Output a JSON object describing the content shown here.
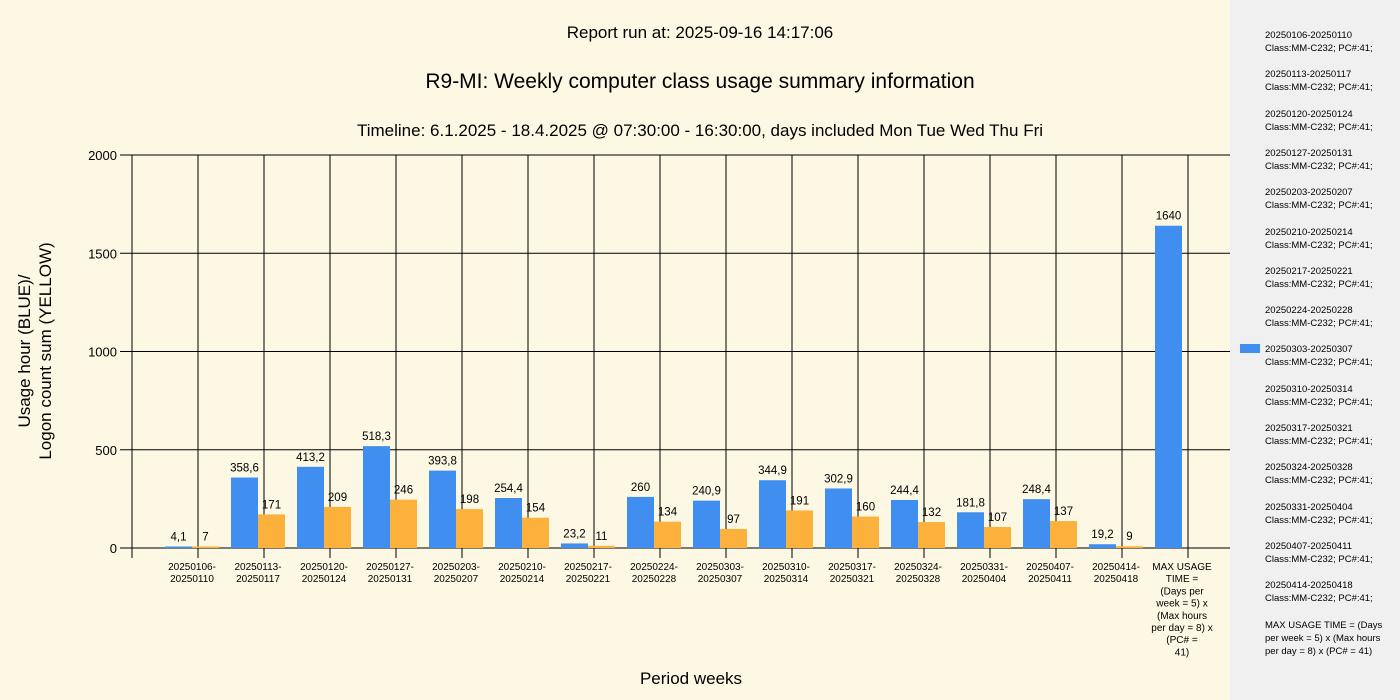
{
  "report_run": "Report run at: 2025-09-16 14:17:06",
  "title": "R9-MI: Weekly computer class usage summary information",
  "subtitle": "Timeline:  6.1.2025  - 18.4.2025  @  07:30:00 -  16:30:00, days included Mon Tue Wed Thu Fri",
  "colors": {
    "usage": "#3f8ef0",
    "logons": "#fbb13c",
    "background": "#fdf8e4",
    "legend_bg": "#f0f0f0"
  },
  "chart_data": {
    "type": "bar",
    "title": "R9-MI: Weekly computer class usage summary information",
    "xlabel": "Period weeks",
    "ylabel_lines": [
      "Usage hour (BLUE)/",
      "Logon count sum (YELLOW)"
    ],
    "ylim": [
      0,
      2000
    ],
    "yticks": [
      "0",
      "500",
      "1000",
      "1500",
      "2000"
    ],
    "grid": true,
    "legend_position": "right",
    "categories": [
      [
        "20250106-",
        "20250110"
      ],
      [
        "20250113-",
        "20250117"
      ],
      [
        "20250120-",
        "20250124"
      ],
      [
        "20250127-",
        "20250131"
      ],
      [
        "20250203-",
        "20250207"
      ],
      [
        "20250210-",
        "20250214"
      ],
      [
        "20250217-",
        "20250221"
      ],
      [
        "20250224-",
        "20250228"
      ],
      [
        "20250303-",
        "20250307"
      ],
      [
        "20250310-",
        "20250314"
      ],
      [
        "20250317-",
        "20250321"
      ],
      [
        "20250324-",
        "20250328"
      ],
      [
        "20250331-",
        "20250404"
      ],
      [
        "20250407-",
        "20250411"
      ],
      [
        "20250414-",
        "20250418"
      ],
      [
        "MAX USAGE",
        "TIME =",
        "(Days per",
        "week = 5) x",
        "(Max hours",
        "per day = 8) x",
        "(PC# =",
        "41)"
      ]
    ],
    "series": [
      {
        "values": [
          4.1,
          358.6,
          413.2,
          518.3,
          393.8,
          254.4,
          23.2,
          260,
          240.9,
          344.9,
          302.9,
          244.4,
          181.8,
          248.4,
          19.2,
          1640
        ],
        "labels": [
          "4,1",
          "358,6",
          "413,2",
          "518,3",
          "393,8",
          "254,4",
          "23,2",
          "260",
          "240,9",
          "344,9",
          "302,9",
          "244,4",
          "181,8",
          "248,4",
          "19,2",
          "1640"
        ]
      },
      {
        "values": [
          7,
          171,
          209,
          246,
          198,
          154,
          11,
          134,
          97,
          191,
          160,
          132,
          107,
          137,
          9,
          null
        ],
        "labels": [
          "7",
          "171",
          "209",
          "246",
          "198",
          "154",
          "11",
          "134",
          "97",
          "191",
          "160",
          "132",
          "107",
          "137",
          "9",
          ""
        ]
      }
    ]
  },
  "legend": [
    [
      "20250106-20250110",
      "Class:MM-C232; PC#:41;"
    ],
    [
      "20250113-20250117",
      "Class:MM-C232; PC#:41;"
    ],
    [
      "20250120-20250124",
      "Class:MM-C232; PC#:41;"
    ],
    [
      "20250127-20250131",
      "Class:MM-C232; PC#:41;"
    ],
    [
      "20250203-20250207",
      "Class:MM-C232; PC#:41;"
    ],
    [
      "20250210-20250214",
      "Class:MM-C232; PC#:41;"
    ],
    [
      "20250217-20250221",
      "Class:MM-C232; PC#:41;"
    ],
    [
      "20250224-20250228",
      "Class:MM-C232; PC#:41;"
    ],
    [
      "20250303-20250307",
      "Class:MM-C232; PC#:41;"
    ],
    [
      "20250310-20250314",
      "Class:MM-C232; PC#:41;"
    ],
    [
      "20250317-20250321",
      "Class:MM-C232; PC#:41;"
    ],
    [
      "20250324-20250328",
      "Class:MM-C232; PC#:41;"
    ],
    [
      "20250331-20250404",
      "Class:MM-C232; PC#:41;"
    ],
    [
      "20250407-20250411",
      "Class:MM-C232; PC#:41;"
    ],
    [
      "20250414-20250418",
      "Class:MM-C232; PC#:41;"
    ],
    [
      "MAX USAGE TIME =  (Days per week = 5) x (Max hours per day = 8) x (PC# = 41)"
    ]
  ],
  "legend_swatch_index": 8
}
